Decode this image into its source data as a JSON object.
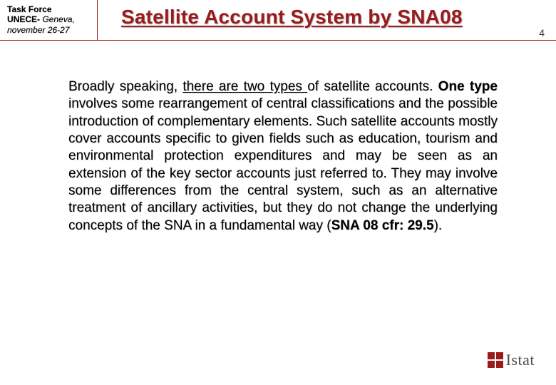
{
  "header": {
    "left_line1": "Task Force",
    "left_line2_bold": "UNECE- ",
    "left_line2_italic": "Geneva,",
    "left_line3": "november 26-27",
    "title": "Satellite Account System by SNA08",
    "page_number": "4"
  },
  "body": {
    "intro_plain": "Broadly speaking, ",
    "intro_underlined": "there are two types ",
    "intro_tail": "of satellite accounts. ",
    "one_type_bold": "One type",
    "main_text": " involves some rearrangement of central classifications and the possible introduction of complementary elements. Such satellite accounts mostly cover accounts specific to given fields such as education, tourism and environmental protection expenditures and may be seen as an extension of the key sector accounts just referred to. They may involve some differences from the central system, such as an alternative treatment of ancillary activities, but they do not change the underlying concepts of the SNA in a fundamental way (",
    "ref_bold": "SNA 08 cfr: 29.5",
    "closing": ")."
  },
  "logo": {
    "text": "Istat",
    "square_color": "#9a1b1b"
  },
  "colors": {
    "accent": "#9a1b1b",
    "text": "#000000",
    "logo_text": "#4a4a4a",
    "background": "#ffffff"
  }
}
